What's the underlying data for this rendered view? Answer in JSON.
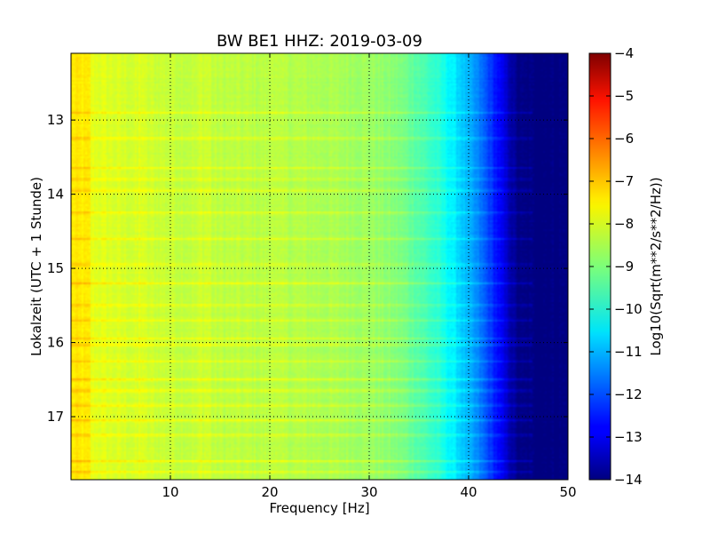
{
  "chart_data": {
    "type": "heatmap",
    "title": "BW BE1 HHZ: 2019-03-09",
    "xlabel": "Frequency [Hz]",
    "ylabel": "Lokalzeit (UTC + 1 Stunde)",
    "xlim": [
      0,
      50
    ],
    "ylim": [
      12.1,
      17.85
    ],
    "y_inverted": true,
    "x_ticks": [
      10,
      20,
      30,
      40,
      50
    ],
    "y_ticks": [
      13,
      14,
      15,
      16,
      17
    ],
    "grid": true,
    "colormap": "jet",
    "colorbar": {
      "label": "Log10(Sqrt(m**2/s**2/Hz))",
      "range": [
        -14,
        -4
      ],
      "ticks": [
        -4,
        -5,
        -6,
        -7,
        -8,
        -9,
        -10,
        -11,
        -12,
        -13,
        -14
      ]
    },
    "spectrum_profile": {
      "frequency_hz": [
        0,
        2,
        5,
        10,
        15,
        20,
        25,
        30,
        33,
        35,
        37,
        39,
        41,
        43,
        44,
        45,
        50
      ],
      "log_amplitude": [
        -7.9,
        -8.0,
        -8.15,
        -8.3,
        -8.4,
        -8.45,
        -8.55,
        -8.7,
        -9.0,
        -9.4,
        -9.9,
        -10.6,
        -11.5,
        -12.7,
        -13.4,
        -14.0,
        -14.0
      ]
    },
    "bright_bands_hours": [
      12.9,
      13.25,
      13.65,
      13.8,
      13.95,
      14.25,
      14.6,
      14.95,
      15.2,
      15.5,
      15.7,
      15.95,
      16.03,
      16.25,
      16.5,
      16.65,
      16.85,
      17.05,
      17.25,
      17.6,
      17.75
    ]
  }
}
